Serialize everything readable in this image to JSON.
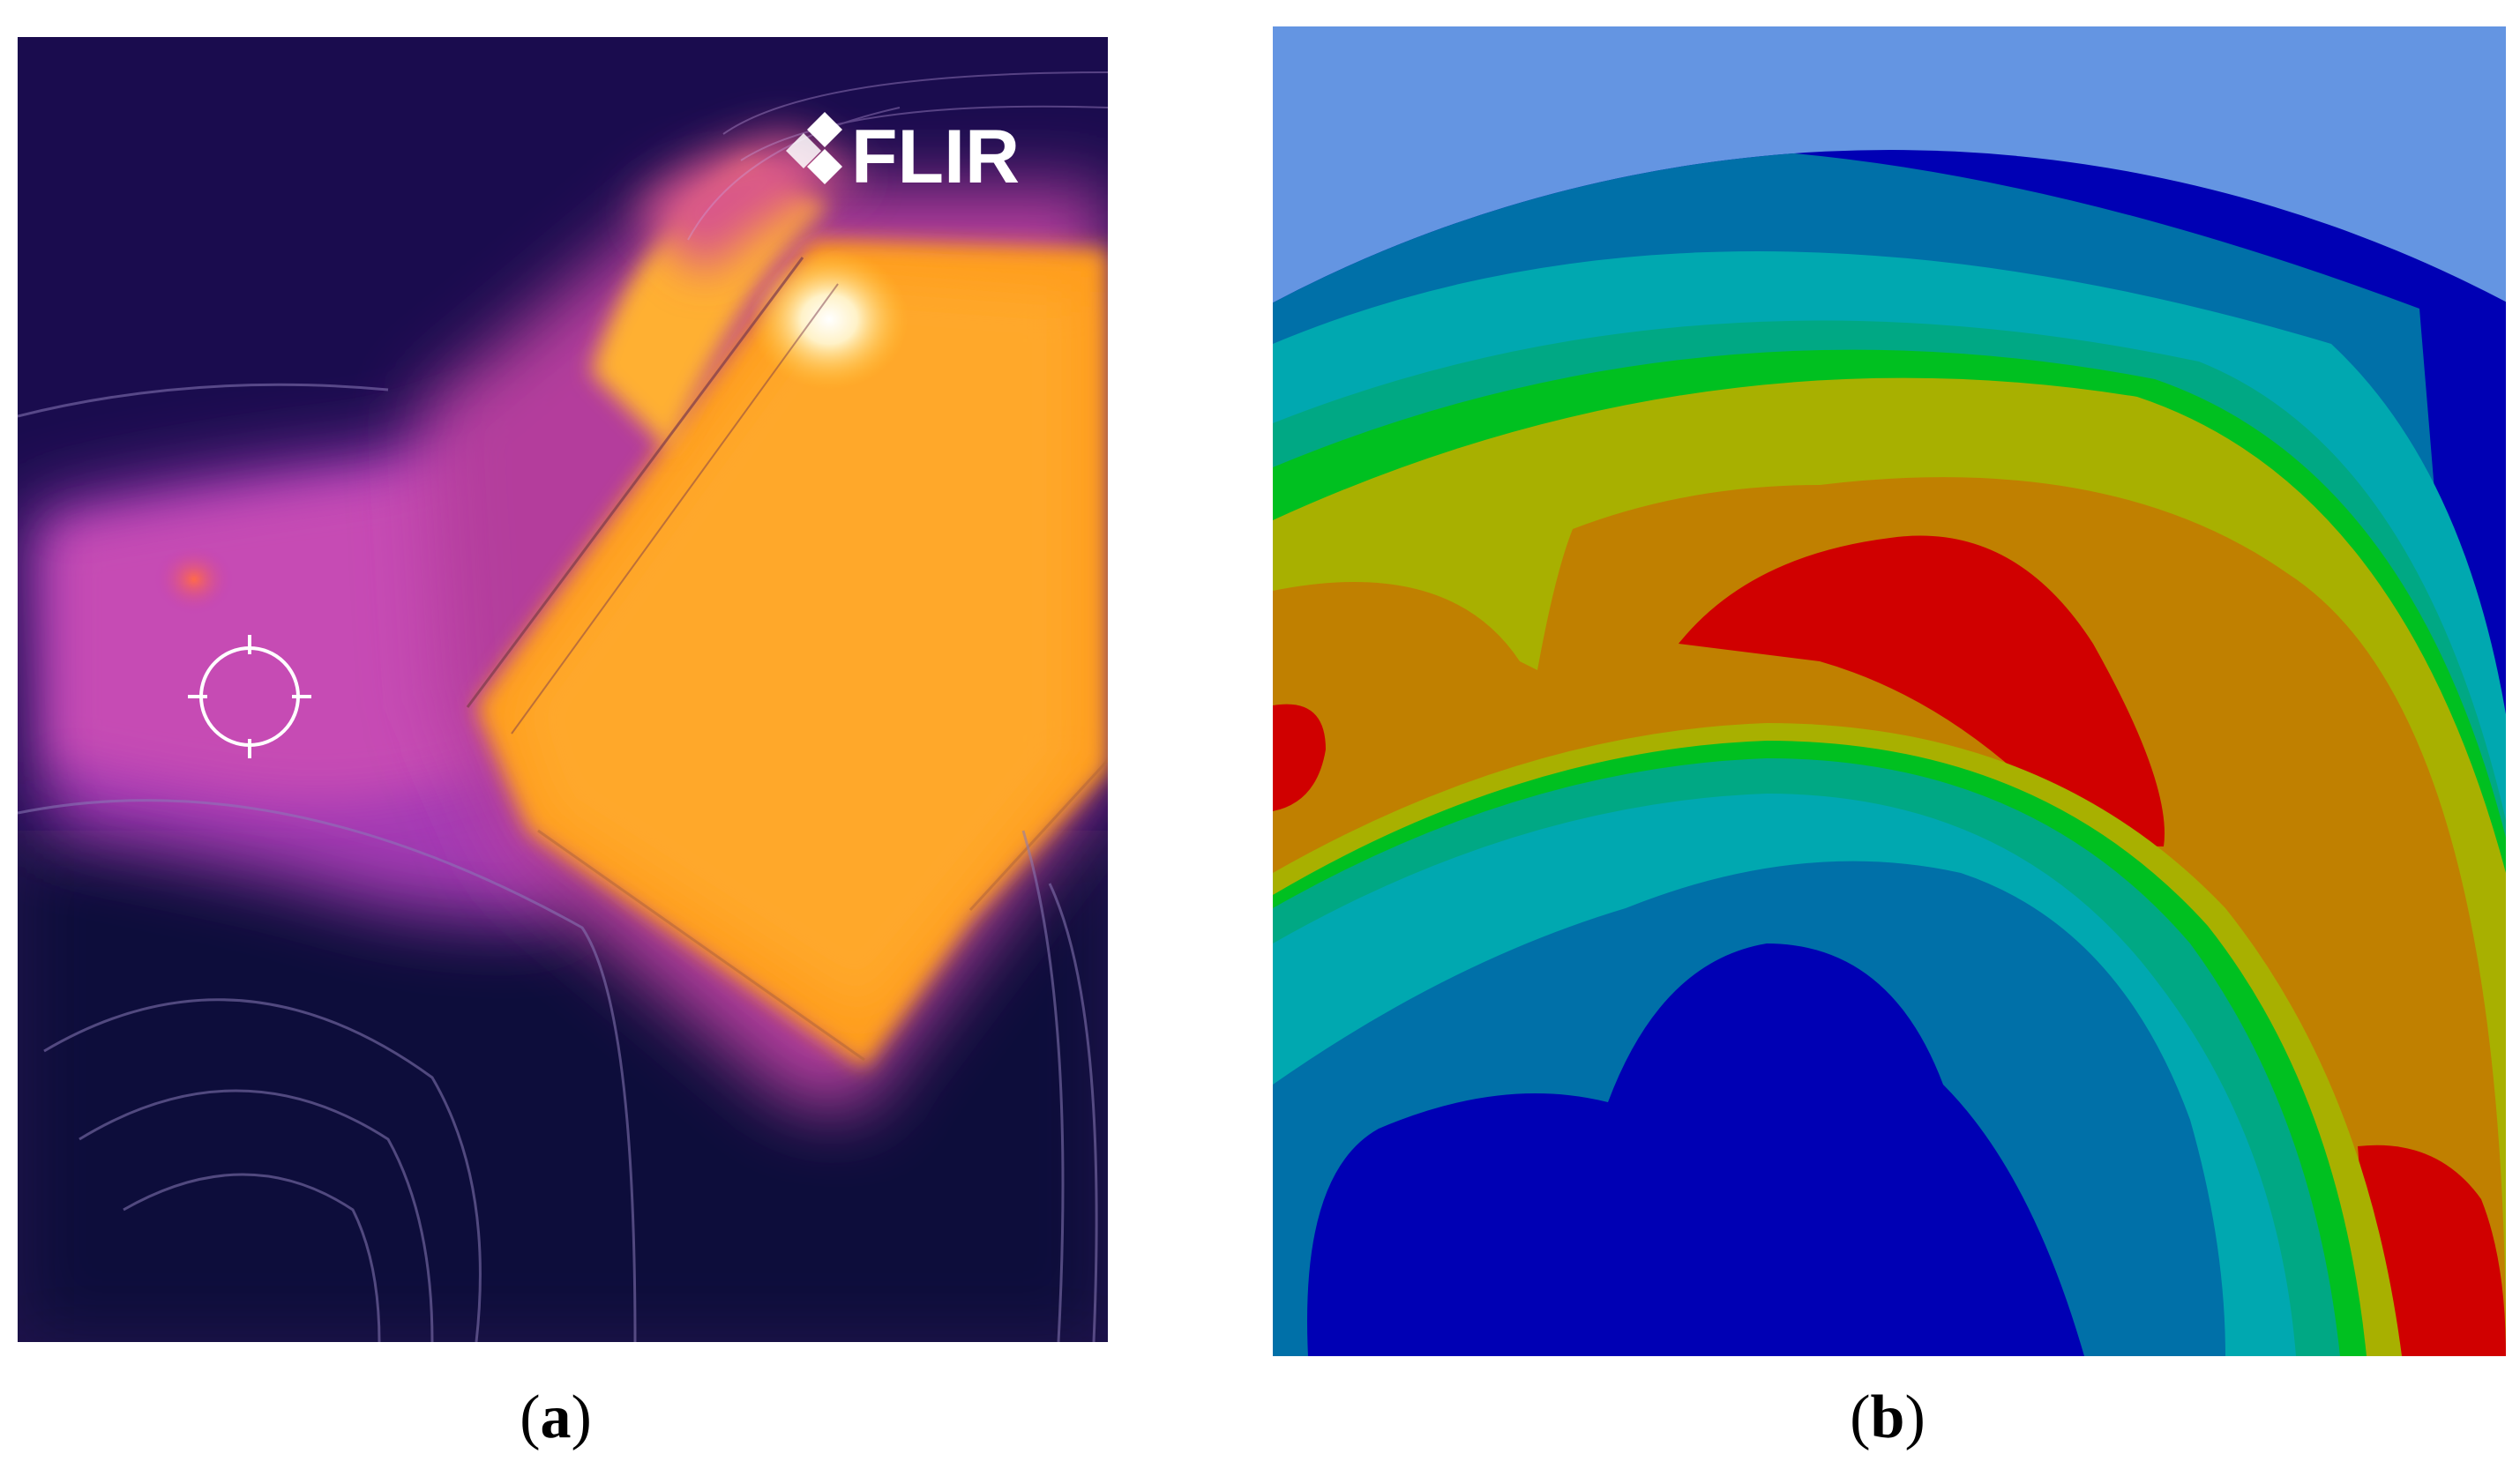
{
  "figure": {
    "panel_a": {
      "logo_text": "FLIR",
      "caption": {
        "open": "(",
        "letter": "a",
        "close": ")"
      }
    },
    "panel_b": {
      "caption": {
        "open": "(",
        "letter": "b",
        "close": ")"
      }
    }
  },
  "colors": {
    "thermal_background": "#1a0c4e",
    "thermal_hot": "#ff9d1e",
    "thermal_warm": "#c23fb8",
    "fea_background": "#6495e2",
    "fea_min": "#0000b4",
    "fea_max": "#d00000"
  }
}
